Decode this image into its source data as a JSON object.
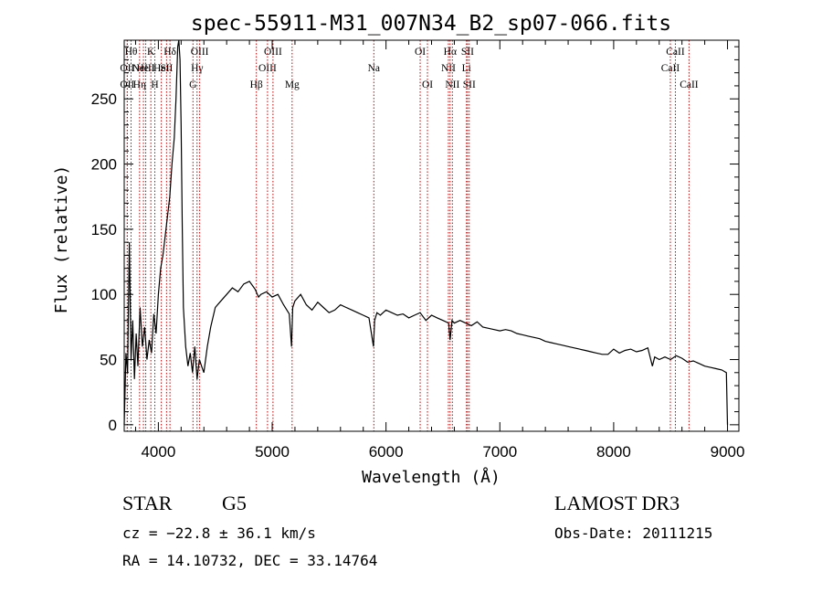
{
  "chart_data": {
    "type": "line",
    "title": "spec-55911-M31_007N34_B2_sp07-066.fits",
    "xlabel": "Wavelength (Å)",
    "ylabel": "Flux (relative)",
    "xlim": [
      3700,
      9100
    ],
    "ylim": [
      -5,
      295
    ],
    "xticks": [
      4000,
      5000,
      6000,
      7000,
      8000,
      9000
    ],
    "yticks": [
      0,
      50,
      100,
      150,
      200,
      250
    ],
    "series": [
      {
        "name": "spectrum",
        "x": [
          3700,
          3715,
          3730,
          3745,
          3760,
          3775,
          3790,
          3805,
          3820,
          3840,
          3860,
          3880,
          3900,
          3920,
          3940,
          3960,
          3980,
          4000,
          4020,
          4040,
          4060,
          4080,
          4100,
          4120,
          4140,
          4155,
          4170,
          4180,
          4190,
          4200,
          4210,
          4220,
          4240,
          4260,
          4280,
          4300,
          4320,
          4340,
          4360,
          4380,
          4400,
          4430,
          4460,
          4500,
          4550,
          4600,
          4650,
          4700,
          4750,
          4800,
          4850,
          4880,
          4900,
          4950,
          5000,
          5050,
          5100,
          5150,
          5170,
          5180,
          5200,
          5250,
          5300,
          5350,
          5400,
          5450,
          5500,
          5550,
          5600,
          5650,
          5700,
          5750,
          5800,
          5850,
          5890,
          5900,
          5920,
          5950,
          6000,
          6050,
          6100,
          6150,
          6200,
          6250,
          6300,
          6350,
          6400,
          6450,
          6500,
          6550,
          6563,
          6580,
          6600,
          6650,
          6700,
          6750,
          6800,
          6850,
          6900,
          6950,
          7000,
          7050,
          7100,
          7150,
          7200,
          7250,
          7300,
          7350,
          7400,
          7450,
          7500,
          7550,
          7600,
          7650,
          7700,
          7750,
          7800,
          7850,
          7900,
          7950,
          8000,
          8050,
          8100,
          8150,
          8200,
          8250,
          8300,
          8340,
          8360,
          8400,
          8450,
          8500,
          8550,
          8600,
          8650,
          8700,
          8750,
          8800,
          8850,
          8900,
          8950,
          8990,
          9000
        ],
        "y": [
          0,
          55,
          40,
          140,
          50,
          80,
          35,
          70,
          45,
          90,
          60,
          75,
          50,
          65,
          55,
          85,
          70,
          100,
          120,
          130,
          145,
          160,
          175,
          200,
          220,
          250,
          290,
          295,
          280,
          230,
          150,
          90,
          60,
          45,
          55,
          40,
          60,
          35,
          50,
          45,
          40,
          60,
          75,
          90,
          95,
          100,
          105,
          102,
          108,
          110,
          104,
          98,
          100,
          102,
          98,
          100,
          92,
          85,
          60,
          90,
          95,
          100,
          92,
          88,
          94,
          90,
          86,
          88,
          92,
          90,
          88,
          86,
          84,
          82,
          60,
          80,
          86,
          84,
          88,
          86,
          84,
          85,
          82,
          84,
          86,
          80,
          84,
          82,
          80,
          78,
          65,
          80,
          78,
          80,
          78,
          76,
          79,
          75,
          74,
          73,
          72,
          73,
          72,
          70,
          69,
          68,
          67,
          66,
          64,
          63,
          62,
          61,
          60,
          59,
          58,
          57,
          56,
          55,
          54,
          54,
          58,
          55,
          57,
          58,
          56,
          57,
          59,
          45,
          52,
          50,
          52,
          50,
          53,
          51,
          48,
          49,
          47,
          45,
          44,
          43,
          42,
          40,
          0
        ]
      }
    ],
    "lines": [
      {
        "x": 3760,
        "label": "Hθ",
        "row": 0
      },
      {
        "x": 3727,
        "label": "OII",
        "row": 1
      },
      {
        "x": 3727,
        "label": "OII",
        "row": 2
      },
      {
        "x": 3835,
        "label": "Hη",
        "row": 2
      },
      {
        "x": 3869,
        "label": "NeIII",
        "row": 1
      },
      {
        "x": 3889,
        "label": "He I",
        "row": 1
      },
      {
        "x": 3934,
        "label": "K",
        "row": 0
      },
      {
        "x": 3969,
        "label": "H",
        "row": 2
      },
      {
        "x": 4026,
        "label": "HeI",
        "row": 1
      },
      {
        "x": 4072,
        "label": "SII",
        "row": 1
      },
      {
        "x": 4102,
        "label": "Hδ",
        "row": 0
      },
      {
        "x": 4304,
        "label": "G",
        "row": 2
      },
      {
        "x": 4340,
        "label": "Hγ",
        "row": 1
      },
      {
        "x": 4363,
        "label": "OIII",
        "row": 0
      },
      {
        "x": 4861,
        "label": "Hβ",
        "row": 2
      },
      {
        "x": 4959,
        "label": "OIII",
        "row": 1
      },
      {
        "x": 5007,
        "label": "OIII",
        "row": 0
      },
      {
        "x": 5175,
        "label": "Mg",
        "row": 2
      },
      {
        "x": 5893,
        "label": "Na",
        "row": 1
      },
      {
        "x": 6300,
        "label": "OI",
        "row": 0
      },
      {
        "x": 6364,
        "label": "OI",
        "row": 2
      },
      {
        "x": 6548,
        "label": "NII",
        "row": 1
      },
      {
        "x": 6563,
        "label": "Hα",
        "row": 0
      },
      {
        "x": 6583,
        "label": "NII",
        "row": 2
      },
      {
        "x": 6707,
        "label": "Li",
        "row": 1
      },
      {
        "x": 6716,
        "label": "SII",
        "row": 0
      },
      {
        "x": 6731,
        "label": "SII",
        "row": 2
      },
      {
        "x": 8498,
        "label": "CaII",
        "row": 1
      },
      {
        "x": 8542,
        "label": "CaII",
        "row": 0
      },
      {
        "x": 8662,
        "label": "CaII",
        "row": 2
      }
    ]
  },
  "info": {
    "class": "STAR",
    "subclass": "G5",
    "survey": "LAMOST DR3",
    "cz": "cz = −22.8 ± 36.1 km/s",
    "obs_date": "Obs-Date: 20111215",
    "radec": "RA =  14.10732, DEC =  33.14764"
  },
  "colors": {
    "line": "#cc0000",
    "spectrum": "#000000"
  }
}
